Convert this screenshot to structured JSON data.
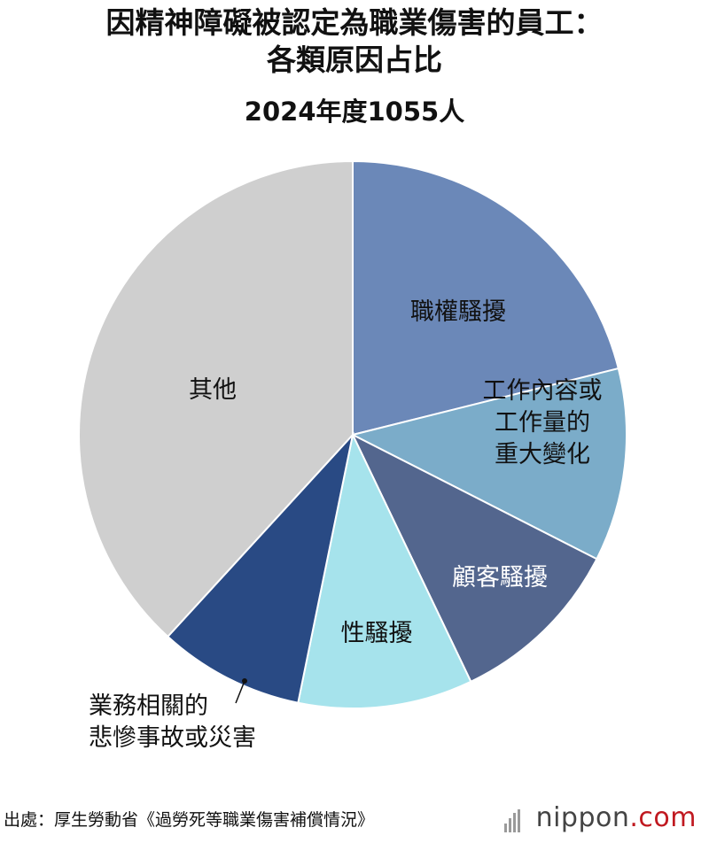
{
  "chart_data": {
    "type": "pie",
    "title": "因精神障礙被認定為職業傷害的員工：",
    "title_line2": "各類原因占比",
    "subtitle": "2024年度1055人",
    "slices": [
      {
        "label": "職權騷擾",
        "value": 21.1,
        "color": "#6b88b8",
        "text_color": "#111111"
      },
      {
        "label": "工作內容或\n工作量的\n重大變化",
        "value": 11.4,
        "color": "#7bacc9",
        "text_color": "#111111"
      },
      {
        "label": "顧客騷擾",
        "value": 10.4,
        "color": "#53668e",
        "text_color": "#ffffff"
      },
      {
        "label": "性騷擾",
        "value": 10.3,
        "color": "#a6e3ec",
        "text_color": "#111111"
      },
      {
        "label": "業務相關的\n悲慘事故或災害",
        "value": 8.6,
        "color": "#294a84",
        "text_color": "#111111"
      },
      {
        "label": "其他",
        "value": 38.2,
        "color": "#cfcfcf",
        "text_color": "#111111"
      }
    ]
  },
  "footer": {
    "source": "出處：厚生勞動省《過勞死等職業傷害補償情況》",
    "logo_main": "nippon",
    "logo_dotcom": ".com"
  }
}
